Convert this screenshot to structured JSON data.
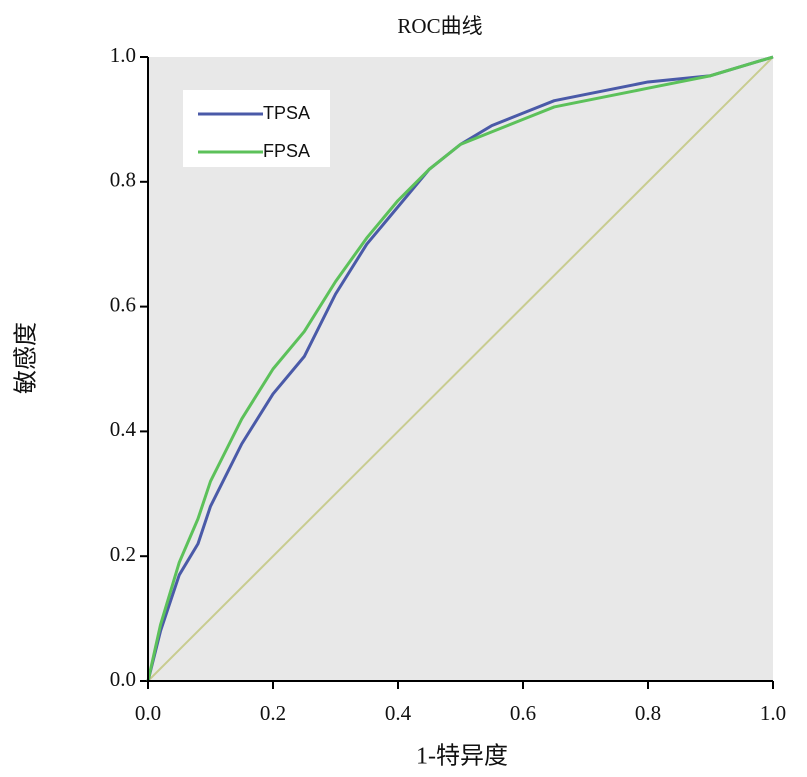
{
  "chart_data": {
    "type": "line",
    "title": "ROC曲线",
    "x_label": "1-特异度",
    "y_label": "敏感度",
    "x": [
      0,
      0.02,
      0.05,
      0.08,
      0.1,
      0.12,
      0.15,
      0.2,
      0.25,
      0.3,
      0.35,
      0.4,
      0.45,
      0.5,
      0.55,
      0.6,
      0.65,
      0.7,
      0.8,
      0.9,
      1.0
    ],
    "series": [
      {
        "name": "TPSA",
        "color": "#4a5aa8",
        "values": [
          0,
          0.08,
          0.17,
          0.22,
          0.28,
          0.32,
          0.38,
          0.46,
          0.52,
          0.62,
          0.7,
          0.76,
          0.82,
          0.86,
          0.89,
          0.91,
          0.93,
          0.94,
          0.96,
          0.97,
          1.0
        ]
      },
      {
        "name": "FPSA",
        "color": "#5cc15a",
        "values": [
          0,
          0.09,
          0.19,
          0.26,
          0.32,
          0.36,
          0.42,
          0.5,
          0.56,
          0.64,
          0.71,
          0.77,
          0.82,
          0.86,
          0.88,
          0.9,
          0.92,
          0.93,
          0.95,
          0.97,
          1.0
        ]
      }
    ],
    "reference_line": {
      "x": [
        0,
        1
      ],
      "values": [
        0,
        1
      ],
      "color": "#c8cc90"
    },
    "xlim": [
      0,
      1
    ],
    "ylim": [
      0,
      1
    ],
    "xticks": [
      {
        "value": 0,
        "label": "0.0"
      },
      0.2,
      0.4,
      0.6,
      0.8,
      {
        "value": 1,
        "label": "1.0"
      }
    ],
    "yticks": [
      {
        "value": 0,
        "label": "0.0"
      },
      0.2,
      0.4,
      0.6,
      0.8,
      {
        "value": 1,
        "label": "1.0"
      }
    ],
    "legend": "upper-left"
  }
}
